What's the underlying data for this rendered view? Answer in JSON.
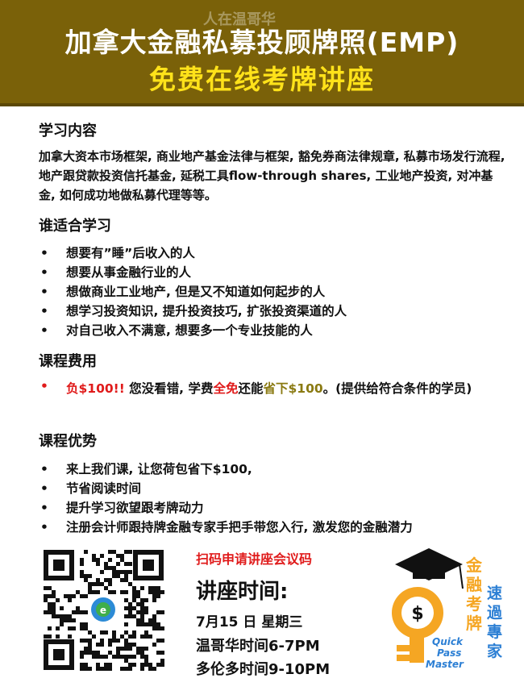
{
  "banner": {
    "watermark": "人在温哥华",
    "title_line1": "加拿大金融私募投顾牌照(EMP)",
    "title_line2": "免费在线考牌讲座"
  },
  "learning": {
    "heading": "学习内容",
    "text": "加拿大资本市场框架, 商业地产基金法律与框架, 豁免券商法律规章, 私募市场发行流程, 地产跟贷款投资信托基金, 延税工具flow-through shares, 工业地产投资, 对冲基金, 如何成功地做私募代理等等。"
  },
  "audience": {
    "heading": "谁适合学习",
    "items": [
      "想要有”睡”后收入的人",
      "想要从事金融行业的人",
      "想做商业工业地产, 但是又不知道如何起步的人",
      "想学习投资知识, 提升投资技巧, 扩张投资渠道的人",
      "对自己收入不满意, 想要多一个专业技能的人"
    ]
  },
  "fee": {
    "heading": "课程费用",
    "neg": "负$100!!",
    "part1": " 您没看错, 学费",
    "free": "全免",
    "part2": "还能",
    "save": "省下$100",
    "part3": "。(提供给符合条件的学员)"
  },
  "benefits": {
    "heading": "课程优势",
    "items": [
      "来上我们课, 让您荷包省下$100,",
      "节省阅读时间",
      "提升学习欲望跟考牌动力",
      "注册会计师跟持牌金融专家手把手带您入行, 激发您的金融潜力"
    ]
  },
  "lecture": {
    "qr_cta": "扫码申请讲座会议码",
    "title": "讲座时间:",
    "date": "7月15 日 星期三",
    "vancouver": "温哥华时间6-7PM",
    "toronto": "多伦多时间9-10PM"
  },
  "logo": {
    "cn_left": "金融考牌",
    "cn_right": "速過專家",
    "en_line1": "Quick",
    "en_line2": "Pass",
    "en_line3": "Master"
  },
  "colors": {
    "banner": "#7a6109",
    "title_yellow": "#ffe21a",
    "accent_red": "#e01b1b",
    "olive": "#8a7a12",
    "logo_orange": "#f5a623"
  }
}
